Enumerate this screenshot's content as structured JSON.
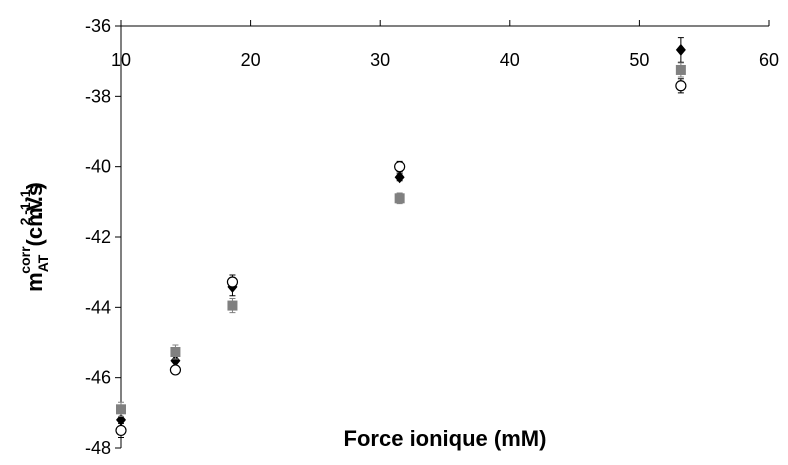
{
  "chart_data": {
    "type": "scatter",
    "xlabel": "Force ionique (mM)",
    "ylabel": [
      "m",
      {
        "sub": "AT"
      },
      {
        "sup": "corr"
      },
      "(cm",
      {
        "sup": "2"
      },
      ".V",
      {
        "sup": "-1"
      },
      ".s",
      {
        "sup": "-1"
      },
      ")"
    ],
    "x": [
      10,
      14.2,
      18.6,
      31.5,
      53.2
    ],
    "series": [
      {
        "color": "#000000",
        "marker": "diamond",
        "values": [
          -47.2,
          -45.52,
          -43.42,
          -40.3,
          -36.68
        ],
        "errors": [
          0.3,
          0.15,
          0.25,
          0.1,
          0.35
        ]
      },
      {
        "color": "#000000",
        "marker": "circle",
        "values": [
          -47.5,
          -45.78,
          -43.28,
          -40.0,
          -37.7
        ],
        "errors": [
          0.2,
          0.1,
          0.2,
          0.15,
          0.2
        ]
      },
      {
        "color": "#808080",
        "marker": "square",
        "values": [
          -46.9,
          -45.27,
          -43.95,
          -40.9,
          -37.25
        ],
        "errors": [
          0.2,
          0.2,
          0.2,
          0.15,
          0.2
        ]
      }
    ],
    "xlim": [
      10,
      60
    ],
    "xticks": [
      10,
      20,
      30,
      40,
      50,
      60
    ],
    "ylim": [
      -48,
      -36
    ],
    "yticks": [
      -36,
      -38,
      -40,
      -42,
      -44,
      -46,
      -48
    ]
  }
}
